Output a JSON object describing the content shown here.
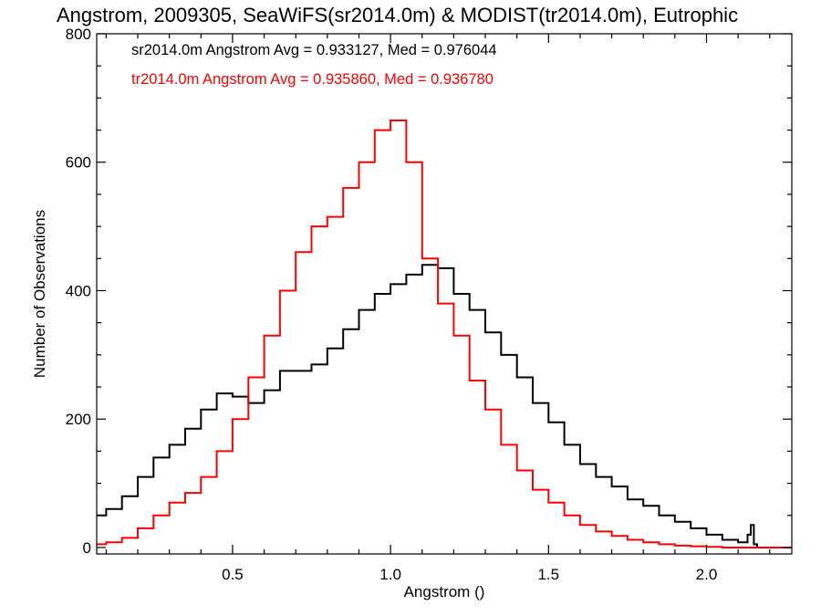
{
  "chart_data": {
    "type": "line",
    "title": "Angstrom, 2009305, SeaWiFS(sr2014.0m) & MODIST(tr2014.0m), Eutrophic",
    "xlabel": "Angstrom ()",
    "ylabel": "Number of Observations",
    "xlim": [
      0.07,
      2.27
    ],
    "ylim": [
      -10,
      800
    ],
    "xticks": [
      0.5,
      1.0,
      1.5,
      2.0
    ],
    "xtick_labels": [
      "0.5",
      "1.0",
      "1.5",
      "2.0"
    ],
    "yticks": [
      0,
      200,
      400,
      600,
      800
    ],
    "ytick_labels": [
      "0",
      "200",
      "400",
      "600",
      "800"
    ],
    "grid": false,
    "stats": [
      {
        "text": "sr2014.0m Angstrom Avg = 0.933127, Med = 0.976044",
        "color": "#000000"
      },
      {
        "text": "tr2014.0m Angstrom Avg = 0.935860, Med = 0.936780",
        "color": "#ff0000"
      }
    ],
    "series": [
      {
        "color": "#000000",
        "x": [
          0.07,
          0.1,
          0.15,
          0.2,
          0.25,
          0.3,
          0.35,
          0.4,
          0.45,
          0.5,
          0.55,
          0.6,
          0.65,
          0.7,
          0.75,
          0.8,
          0.85,
          0.9,
          0.95,
          1.0,
          1.05,
          1.1,
          1.15,
          1.2,
          1.25,
          1.3,
          1.35,
          1.4,
          1.45,
          1.5,
          1.55,
          1.6,
          1.65,
          1.7,
          1.75,
          1.8,
          1.85,
          1.9,
          1.95,
          2.0,
          2.05,
          2.1,
          2.13,
          2.14,
          2.15,
          2.16
        ],
        "y": [
          50,
          60,
          80,
          110,
          140,
          160,
          185,
          215,
          240,
          235,
          225,
          245,
          275,
          275,
          285,
          310,
          340,
          370,
          395,
          410,
          425,
          440,
          435,
          395,
          370,
          335,
          300,
          265,
          225,
          195,
          160,
          130,
          110,
          95,
          75,
          65,
          50,
          40,
          30,
          20,
          12,
          8,
          20,
          35,
          5,
          0
        ]
      },
      {
        "color": "#ff0000",
        "x": [
          0.07,
          0.1,
          0.15,
          0.2,
          0.25,
          0.3,
          0.35,
          0.4,
          0.45,
          0.5,
          0.55,
          0.6,
          0.65,
          0.7,
          0.75,
          0.8,
          0.85,
          0.9,
          0.95,
          1.0,
          1.05,
          1.1,
          1.15,
          1.2,
          1.25,
          1.3,
          1.35,
          1.4,
          1.45,
          1.5,
          1.55,
          1.6,
          1.65,
          1.7,
          1.75,
          1.8,
          1.85,
          1.9,
          1.95,
          2.0,
          2.05,
          2.1,
          2.15,
          2.2,
          2.27
        ],
        "y": [
          5,
          8,
          15,
          30,
          50,
          70,
          85,
          110,
          150,
          200,
          265,
          330,
          400,
          460,
          500,
          515,
          560,
          600,
          650,
          665,
          600,
          450,
          380,
          330,
          260,
          215,
          160,
          120,
          90,
          70,
          50,
          35,
          25,
          18,
          12,
          8,
          5,
          3,
          2,
          1,
          0,
          0,
          0,
          0,
          0
        ]
      }
    ]
  }
}
